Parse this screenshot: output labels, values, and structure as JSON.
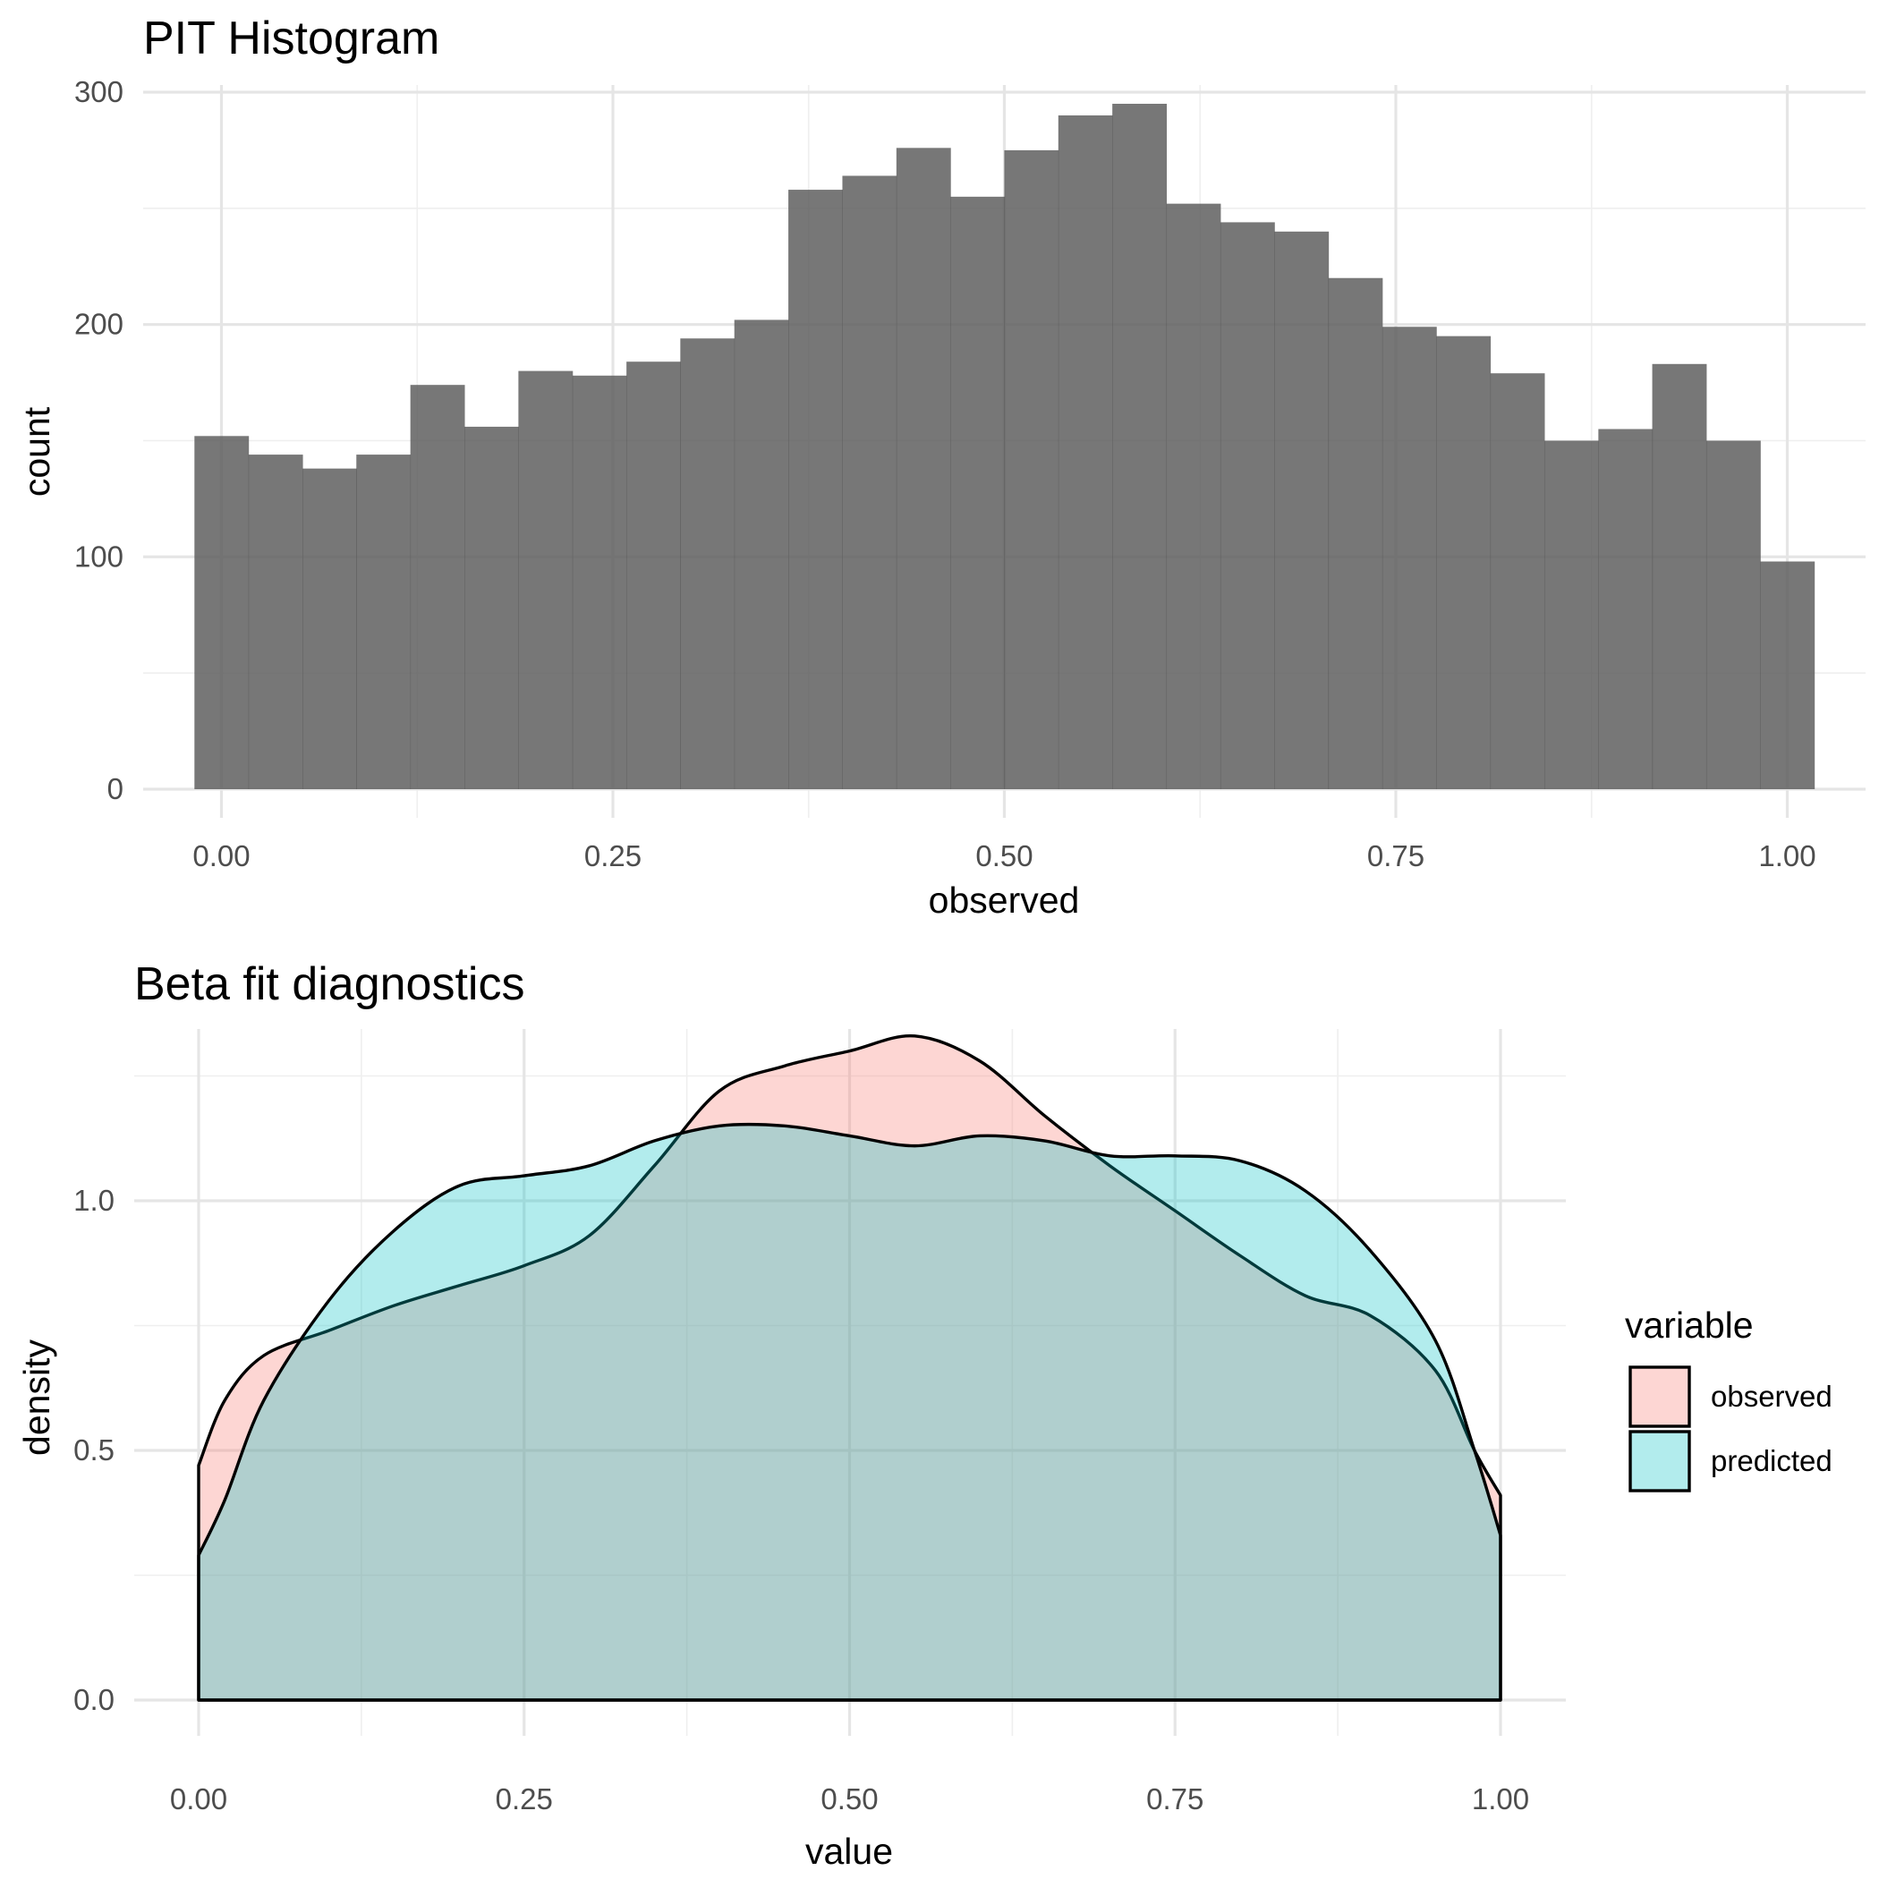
{
  "chart_data": [
    {
      "type": "bar",
      "title": "PIT Histogram",
      "xlabel": "observed",
      "ylabel": "count",
      "xlim": [
        -0.05,
        1.05
      ],
      "ylim": [
        0,
        300
      ],
      "x_ticks": [
        "0.00",
        "0.25",
        "0.50",
        "0.75",
        "1.00"
      ],
      "y_ticks": [
        "0",
        "100",
        "200",
        "300"
      ],
      "bar_color": "#595959",
      "bin_width": 0.0345,
      "bin_centers": [
        0.0,
        0.0345,
        0.069,
        0.1034,
        0.1379,
        0.1724,
        0.2069,
        0.2414,
        0.2759,
        0.3103,
        0.3448,
        0.3793,
        0.4138,
        0.4483,
        0.4828,
        0.5172,
        0.5517,
        0.5862,
        0.6207,
        0.6552,
        0.6897,
        0.7241,
        0.7586,
        0.7931,
        0.8276,
        0.8621,
        0.8966,
        0.931,
        0.9655,
        1.0
      ],
      "values": [
        152,
        144,
        138,
        144,
        174,
        156,
        180,
        178,
        184,
        194,
        202,
        258,
        264,
        276,
        255,
        275,
        290,
        295,
        252,
        244,
        240,
        220,
        199,
        195,
        179,
        150,
        155,
        183,
        150,
        98
      ]
    },
    {
      "type": "area",
      "title": "Beta fit diagnostics",
      "xlabel": "value",
      "ylabel": "density",
      "xlim": [
        0,
        1
      ],
      "ylim": [
        0,
        1.3
      ],
      "x_ticks": [
        "0.00",
        "0.25",
        "0.50",
        "0.75",
        "1.00"
      ],
      "y_ticks": [
        "0.0",
        "0.5",
        "1.0"
      ],
      "legend_title": "variable",
      "legend_position": "right",
      "series": [
        {
          "name": "observed",
          "color": "#F8766D",
          "x": [
            0.0,
            0.02,
            0.05,
            0.1,
            0.15,
            0.2,
            0.25,
            0.3,
            0.35,
            0.4,
            0.45,
            0.5,
            0.55,
            0.6,
            0.65,
            0.7,
            0.75,
            0.8,
            0.85,
            0.9,
            0.95,
            0.98,
            1.0
          ],
          "y": [
            0.47,
            0.6,
            0.69,
            0.74,
            0.79,
            0.83,
            0.87,
            0.93,
            1.07,
            1.22,
            1.27,
            1.3,
            1.33,
            1.28,
            1.17,
            1.07,
            0.98,
            0.89,
            0.81,
            0.77,
            0.66,
            0.5,
            0.41
          ]
        },
        {
          "name": "predicted",
          "color": "#00BFC4",
          "x": [
            0.0,
            0.02,
            0.05,
            0.1,
            0.15,
            0.2,
            0.25,
            0.3,
            0.35,
            0.4,
            0.45,
            0.5,
            0.55,
            0.6,
            0.65,
            0.7,
            0.75,
            0.8,
            0.85,
            0.9,
            0.95,
            0.98,
            1.0
          ],
          "y": [
            0.29,
            0.4,
            0.6,
            0.8,
            0.94,
            1.03,
            1.05,
            1.07,
            1.12,
            1.15,
            1.15,
            1.13,
            1.11,
            1.13,
            1.12,
            1.09,
            1.09,
            1.08,
            1.02,
            0.9,
            0.72,
            0.5,
            0.33
          ]
        }
      ]
    }
  ]
}
